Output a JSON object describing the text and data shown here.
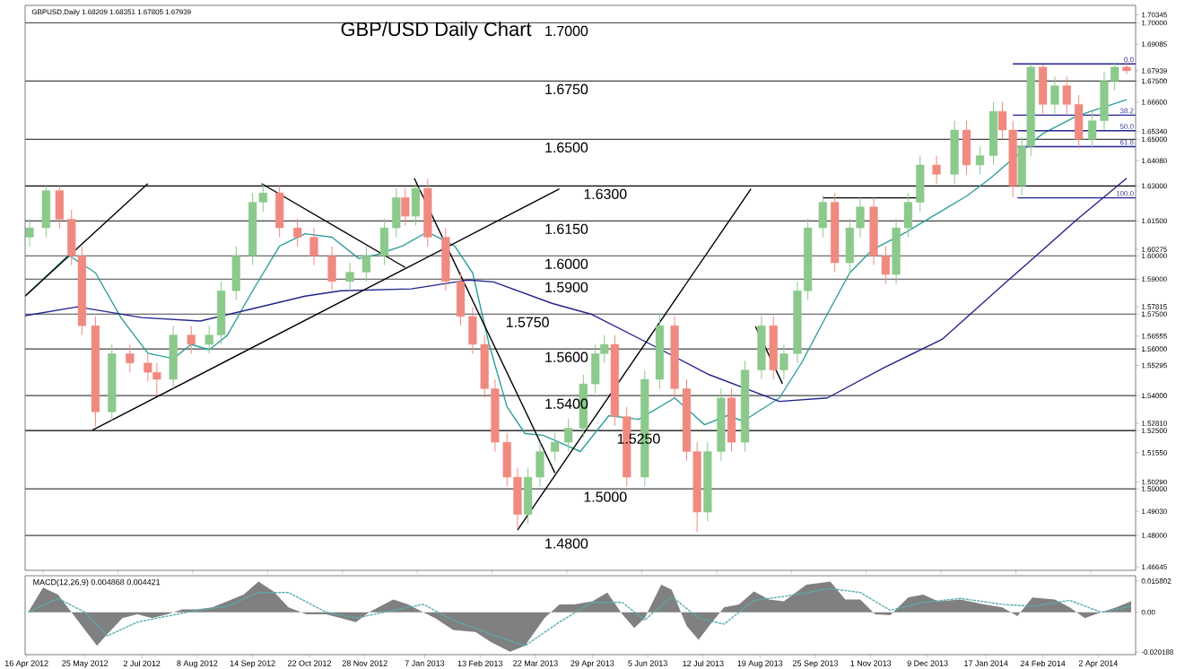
{
  "chart_data": [
    {
      "type": "candlestick",
      "title": "GBP/USD Daily Chart",
      "annotations": [
        "GBPUSD,Daily  1.68209 1.68351 1.67805 1.67939",
        {
          "text": "0.0",
          "x": "2014-04-27",
          "y": 1.6824
        },
        {
          "text": "38.2",
          "x": "2014-04-27",
          "y": 1.6604
        },
        {
          "text": "50.0",
          "x": "2014-04-27",
          "y": 1.6537
        },
        {
          "text": "61.8",
          "x": "2014-04-27",
          "y": 1.6469
        },
        {
          "text": "100.0",
          "x": "2014-04-27",
          "y": 1.6249
        }
      ],
      "x": [
        "2012-04-18",
        "2012-04-29",
        "2012-05-08",
        "2012-05-16",
        "2012-05-23",
        "2012-06-01",
        "2012-06-12",
        "2012-06-24",
        "2012-07-06",
        "2012-07-12",
        "2012-07-23",
        "2012-08-04",
        "2012-08-16",
        "2012-08-24",
        "2012-09-03",
        "2012-09-14",
        "2012-09-21",
        "2012-10-02",
        "2012-10-14",
        "2012-10-25",
        "2012-11-06",
        "2012-11-18",
        "2012-11-29",
        "2012-12-11",
        "2012-12-19",
        "2012-12-25",
        "2013-01-01",
        "2013-01-09",
        "2013-01-21",
        "2013-01-31",
        "2013-02-08",
        "2013-02-16",
        "2013-02-23",
        "2013-03-03",
        "2013-03-10",
        "2013-03-17",
        "2013-03-25",
        "2013-04-04",
        "2013-04-13",
        "2013-04-23",
        "2013-05-01",
        "2013-05-07",
        "2013-05-14",
        "2013-05-22",
        "2013-06-03",
        "2013-06-13",
        "2013-06-23",
        "2013-07-01",
        "2013-07-08",
        "2013-07-15",
        "2013-07-24",
        "2013-07-31",
        "2013-08-09",
        "2013-08-20",
        "2013-08-28",
        "2013-09-04",
        "2013-09-13",
        "2013-09-20",
        "2013-09-30",
        "2013-10-08",
        "2013-10-18",
        "2013-10-25",
        "2013-11-03",
        "2013-11-11",
        "2013-11-18",
        "2013-11-26",
        "2013-12-04",
        "2013-12-15",
        "2013-12-27",
        "2014-01-04",
        "2014-01-13",
        "2014-01-22",
        "2014-01-28",
        "2014-02-04",
        "2014-02-10",
        "2014-02-16",
        "2014-02-24",
        "2014-03-04",
        "2014-03-12",
        "2014-03-20",
        "2014-03-29",
        "2014-04-06",
        "2014-04-13",
        "2014-04-21"
      ],
      "ohlc": [
        [
          1.608,
          1.616,
          1.604,
          1.612
        ],
        [
          1.612,
          1.63,
          1.608,
          1.628
        ],
        [
          1.628,
          1.63,
          1.6117,
          1.6157
        ],
        [
          1.6157,
          1.6197,
          1.596,
          1.6
        ],
        [
          1.6,
          1.604,
          1.566,
          1.57
        ],
        [
          1.57,
          1.574,
          1.5268,
          1.533
        ],
        [
          1.533,
          1.562,
          1.529,
          1.558
        ],
        [
          1.558,
          1.562,
          1.55,
          1.554
        ],
        [
          1.554,
          1.558,
          1.546,
          1.55
        ],
        [
          1.55,
          1.554,
          1.54,
          1.547
        ],
        [
          1.547,
          1.57,
          1.543,
          1.566
        ],
        [
          1.566,
          1.57,
          1.558,
          1.562
        ],
        [
          1.562,
          1.57,
          1.558,
          1.566
        ],
        [
          1.566,
          1.589,
          1.562,
          1.585
        ],
        [
          1.585,
          1.604,
          1.581,
          1.6
        ],
        [
          1.6,
          1.627,
          1.596,
          1.623
        ],
        [
          1.623,
          1.6306,
          1.619,
          1.627
        ],
        [
          1.627,
          1.63,
          1.608,
          1.612
        ],
        [
          1.612,
          1.616,
          1.604,
          1.608
        ],
        [
          1.608,
          1.612,
          1.596,
          1.6
        ],
        [
          1.6,
          1.604,
          1.585,
          1.589
        ],
        [
          1.589,
          1.597,
          1.585,
          1.593
        ],
        [
          1.593,
          1.604,
          1.589,
          1.6
        ],
        [
          1.6,
          1.616,
          1.596,
          1.612
        ],
        [
          1.612,
          1.629,
          1.608,
          1.625
        ],
        [
          1.625,
          1.629,
          1.613,
          1.617
        ],
        [
          1.617,
          1.631,
          1.613,
          1.629
        ],
        [
          1.629,
          1.633,
          1.604,
          1.608
        ],
        [
          1.608,
          1.612,
          1.585,
          1.589
        ],
        [
          1.589,
          1.593,
          1.57,
          1.574
        ],
        [
          1.574,
          1.578,
          1.558,
          1.562
        ],
        [
          1.562,
          1.566,
          1.539,
          1.543
        ],
        [
          1.543,
          1.547,
          1.516,
          1.52
        ],
        [
          1.52,
          1.524,
          1.501,
          1.505
        ],
        [
          1.505,
          1.509,
          1.483,
          1.489
        ],
        [
          1.489,
          1.509,
          1.485,
          1.505
        ],
        [
          1.505,
          1.52,
          1.501,
          1.516
        ],
        [
          1.516,
          1.524,
          1.512,
          1.52
        ],
        [
          1.52,
          1.53,
          1.516,
          1.526
        ],
        [
          1.526,
          1.549,
          1.522,
          1.545
        ],
        [
          1.545,
          1.562,
          1.541,
          1.558
        ],
        [
          1.558,
          1.566,
          1.554,
          1.562
        ],
        [
          1.562,
          1.566,
          1.527,
          1.531
        ],
        [
          1.531,
          1.535,
          1.501,
          1.505
        ],
        [
          1.505,
          1.551,
          1.501,
          1.547
        ],
        [
          1.547,
          1.575,
          1.543,
          1.57
        ],
        [
          1.57,
          1.574,
          1.539,
          1.543
        ],
        [
          1.543,
          1.547,
          1.512,
          1.516
        ],
        [
          1.516,
          1.52,
          1.4815,
          1.49
        ],
        [
          1.49,
          1.52,
          1.486,
          1.516
        ],
        [
          1.516,
          1.543,
          1.512,
          1.539
        ],
        [
          1.539,
          1.543,
          1.516,
          1.52
        ],
        [
          1.52,
          1.555,
          1.516,
          1.551
        ],
        [
          1.551,
          1.574,
          1.547,
          1.57
        ],
        [
          1.57,
          1.574,
          1.547,
          1.551
        ],
        [
          1.551,
          1.562,
          1.547,
          1.558
        ],
        [
          1.558,
          1.589,
          1.554,
          1.585
        ],
        [
          1.585,
          1.616,
          1.581,
          1.612
        ],
        [
          1.612,
          1.626,
          1.608,
          1.623
        ],
        [
          1.623,
          1.627,
          1.593,
          1.597
        ],
        [
          1.597,
          1.616,
          1.593,
          1.612
        ],
        [
          1.612,
          1.625,
          1.608,
          1.621
        ],
        [
          1.621,
          1.625,
          1.596,
          1.6
        ],
        [
          1.6,
          1.604,
          1.588,
          1.592
        ],
        [
          1.592,
          1.616,
          1.588,
          1.612
        ],
        [
          1.612,
          1.627,
          1.608,
          1.623
        ],
        [
          1.623,
          1.643,
          1.619,
          1.639
        ],
        [
          1.639,
          1.643,
          1.631,
          1.635
        ],
        [
          1.635,
          1.658,
          1.631,
          1.654
        ],
        [
          1.654,
          1.658,
          1.635,
          1.639
        ],
        [
          1.639,
          1.647,
          1.635,
          1.643
        ],
        [
          1.643,
          1.666,
          1.639,
          1.662
        ],
        [
          1.662,
          1.666,
          1.65,
          1.654
        ],
        [
          1.654,
          1.658,
          1.6252,
          1.63
        ],
        [
          1.63,
          1.651,
          1.626,
          1.647
        ],
        [
          1.647,
          1.6823,
          1.643,
          1.681
        ],
        [
          1.681,
          1.682,
          1.661,
          1.665
        ],
        [
          1.665,
          1.677,
          1.661,
          1.673
        ],
        [
          1.673,
          1.677,
          1.661,
          1.665
        ],
        [
          1.665,
          1.669,
          1.646,
          1.65
        ],
        [
          1.65,
          1.662,
          1.646,
          1.658
        ],
        [
          1.658,
          1.679,
          1.654,
          1.675
        ],
        [
          1.675,
          1.683,
          1.671,
          1.681
        ],
        [
          1.681,
          1.6835,
          1.678,
          1.6794
        ]
      ],
      "colors": [
        "#8cc98c",
        "#8cc98c",
        "#f08a80",
        "#f08a80",
        "#f08a80",
        "#f08a80",
        "#8cc98c",
        "#f08a80",
        "#f08a80",
        "#f08a80",
        "#8cc98c",
        "#f08a80",
        "#8cc98c",
        "#8cc98c",
        "#8cc98c",
        "#8cc98c",
        "#8cc98c",
        "#f08a80",
        "#f08a80",
        "#f08a80",
        "#f08a80",
        "#8cc98c",
        "#8cc98c",
        "#8cc98c",
        "#8cc98c",
        "#f08a80",
        "#8cc98c",
        "#f08a80",
        "#f08a80",
        "#f08a80",
        "#f08a80",
        "#f08a80",
        "#f08a80",
        "#f08a80",
        "#f08a80",
        "#8cc98c",
        "#8cc98c",
        "#8cc98c",
        "#8cc98c",
        "#8cc98c",
        "#8cc98c",
        "#8cc98c",
        "#f08a80",
        "#f08a80",
        "#8cc98c",
        "#8cc98c",
        "#f08a80",
        "#f08a80",
        "#f08a80",
        "#8cc98c",
        "#8cc98c",
        "#f08a80",
        "#8cc98c",
        "#8cc98c",
        "#f08a80",
        "#8cc98c",
        "#8cc98c",
        "#8cc98c",
        "#8cc98c",
        "#f08a80",
        "#8cc98c",
        "#8cc98c",
        "#f08a80",
        "#f08a80",
        "#8cc98c",
        "#8cc98c",
        "#8cc98c",
        "#f08a80",
        "#8cc98c",
        "#f08a80",
        "#8cc98c",
        "#8cc98c",
        "#f08a80",
        "#f08a80",
        "#8cc98c",
        "#8cc98c",
        "#f08a80",
        "#8cc98c",
        "#f08a80",
        "#f08a80",
        "#8cc98c",
        "#8cc98c",
        "#8cc98c",
        "#f08a80"
      ],
      "series": [
        {
          "type": "line",
          "color": "#2e9e9a",
          "x": [
            "2012-04-15",
            "2012-05-14",
            "2012-06-01",
            "2012-06-18",
            "2012-07-06",
            "2012-07-23",
            "2012-08-04",
            "2012-08-16",
            "2012-08-28",
            "2012-09-14",
            "2012-10-02",
            "2012-10-19",
            "2012-11-06",
            "2012-11-24",
            "2012-12-05",
            "2012-12-23",
            "2013-01-09",
            "2013-01-27",
            "2013-02-08",
            "2013-02-19",
            "2013-03-03",
            "2013-03-15",
            "2013-03-27",
            "2013-04-13",
            "2013-04-21",
            "2013-05-10",
            "2013-05-30",
            "2013-06-23",
            "2013-07-13",
            "2013-07-28",
            "2013-08-08",
            "2013-09-01",
            "2013-09-16",
            "2013-10-03",
            "2013-10-18",
            "2013-11-02",
            "2013-11-25",
            "2013-12-19",
            "2014-01-04",
            "2014-01-20",
            "2014-02-04",
            "2014-02-24",
            "2014-03-19",
            "2014-04-21"
          ],
          "values": [
            1.5827,
            1.6003,
            1.5927,
            1.5735,
            1.5582,
            1.5559,
            1.562,
            1.5597,
            1.5658,
            1.585,
            1.6042,
            1.6095,
            1.608,
            1.5988,
            1.6003,
            1.6042,
            1.6103,
            1.6042,
            1.5927,
            1.562,
            1.5352,
            1.5237,
            1.523,
            1.5183,
            1.516,
            1.5314,
            1.5298,
            1.539,
            1.5275,
            1.5314,
            1.5291,
            1.539,
            1.5543,
            1.575,
            1.5927,
            1.6026,
            1.6103,
            1.6195,
            1.6256,
            1.6333,
            1.6417,
            1.6525,
            1.6601,
            1.667
          ]
        },
        {
          "type": "line",
          "color": "#24248c",
          "x": [
            "2012-04-15",
            "2012-05-20",
            "2012-07-02",
            "2012-08-10",
            "2012-09-14",
            "2012-10-19",
            "2012-11-12",
            "2012-12-29",
            "2013-02-05",
            "2013-02-22",
            "2013-04-02",
            "2013-04-28",
            "2013-06-07",
            "2013-07-16",
            "2013-09-01",
            "2013-10-03",
            "2013-11-10",
            "2013-12-19",
            "2014-01-28",
            "2014-02-20",
            "2014-03-19",
            "2014-04-21"
          ],
          "values": [
            1.5743,
            1.5781,
            1.5735,
            1.572,
            1.5773,
            1.5827,
            1.585,
            1.5858,
            1.5896,
            1.5888,
            1.5796,
            1.575,
            1.562,
            1.549,
            1.5375,
            1.539,
            1.552,
            1.5643,
            1.5873,
            1.6003,
            1.6157,
            1.6333
          ]
        },
        {
          "type": "line",
          "color": "#000000",
          "x": [
            "2012-04-15",
            "2012-07-06"
          ],
          "values": [
            1.5827,
            1.631
          ]
        },
        {
          "type": "line",
          "color": "#000000",
          "x": [
            "2012-05-30",
            "2013-04-07"
          ],
          "values": [
            1.5252,
            1.6287
          ]
        },
        {
          "type": "line",
          "color": "#000000",
          "x": [
            "2012-09-20",
            "2012-12-25"
          ],
          "values": [
            1.631,
            1.595
          ]
        },
        {
          "type": "line",
          "color": "#000000",
          "x": [
            "2012-12-31",
            "2013-04-04"
          ],
          "values": [
            1.6333,
            1.5068
          ]
        },
        {
          "type": "line",
          "color": "#000000",
          "x": [
            "2013-03-10",
            "2013-08-13"
          ],
          "values": [
            1.4823,
            1.6287
          ]
        },
        {
          "type": "line",
          "color": "#000000",
          "x": [
            "2013-08-16",
            "2013-09-03"
          ],
          "values": [
            1.5697,
            1.5451
          ]
        },
        {
          "type": "line",
          "color": "#000000",
          "x": [
            "2013-09-30",
            "2013-12-04"
          ],
          "values": [
            1.6249,
            1.6249
          ]
        },
        {
          "type": "line",
          "color": "#23238e",
          "x": [
            "2014-02-04",
            "2014-04-27"
          ],
          "values": [
            1.6824,
            1.6824
          ]
        },
        {
          "type": "line",
          "color": "#23238e",
          "x": [
            "2014-02-04",
            "2014-04-27"
          ],
          "values": [
            1.6604,
            1.6604
          ]
        },
        {
          "type": "line",
          "color": "#23238e",
          "x": [
            "2014-02-07",
            "2014-04-27"
          ],
          "values": [
            1.6537,
            1.6537
          ]
        },
        {
          "type": "line",
          "color": "#23238e",
          "x": [
            "2014-02-07",
            "2014-04-27"
          ],
          "values": [
            1.6469,
            1.6469
          ]
        },
        {
          "type": "line",
          "color": "#23238e",
          "x": [
            "2014-02-07",
            "2014-04-27"
          ],
          "values": [
            1.6249,
            1.6249
          ]
        }
      ],
      "ref_lines": [
        {
          "axis": "y",
          "value": 1.7,
          "label": "1.7000",
          "color": "#444444"
        },
        {
          "axis": "y",
          "value": 1.675,
          "label": "1.6750",
          "color": "#444444"
        },
        {
          "axis": "y",
          "value": 1.65,
          "label": "1.6500",
          "color": "#444444"
        },
        {
          "axis": "y",
          "value": 1.63,
          "label": "1.6300",
          "color": "#000000"
        },
        {
          "axis": "y",
          "value": 1.615,
          "label": "1.6150",
          "color": "#444444"
        },
        {
          "axis": "y",
          "value": 1.6,
          "label": "1.6000",
          "color": "#444444"
        },
        {
          "axis": "y",
          "value": 1.59,
          "label": "1.5900",
          "color": "#444444"
        },
        {
          "axis": "y",
          "value": 1.575,
          "label": "1.5750",
          "color": "#444444"
        },
        {
          "axis": "y",
          "value": 1.56,
          "label": "1.5600",
          "color": "#444444"
        },
        {
          "axis": "y",
          "value": 1.54,
          "label": "1.5400",
          "color": "#444444"
        },
        {
          "axis": "y",
          "value": 1.525,
          "label": "1.5250",
          "color": "#000000"
        },
        {
          "axis": "y",
          "value": 1.5,
          "label": "1.5000",
          "color": "#444444"
        },
        {
          "axis": "y",
          "value": 1.48,
          "label": "1.4800",
          "color": "#444444"
        }
      ],
      "xlim": [
        "2012-04-15",
        "2014-04-27"
      ],
      "ylim": [
        1.465,
        1.7075
      ],
      "yticks": [
        {
          "value": 1.70345,
          "label": "1.70345"
        },
        {
          "value": 1.7,
          "label": "1.70000"
        },
        {
          "value": 1.69085,
          "label": "1.69085"
        },
        {
          "value": 1.67939,
          "label": "1.67939"
        },
        {
          "value": 1.675,
          "label": "1.67500"
        },
        {
          "value": 1.666,
          "label": "1.66600"
        },
        {
          "value": 1.6534,
          "label": "1.65340"
        },
        {
          "value": 1.65,
          "label": "1.65000"
        },
        {
          "value": 1.6408,
          "label": "1.64080"
        },
        {
          "value": 1.63,
          "label": "1.63000"
        },
        {
          "value": 1.615,
          "label": "1.61500"
        },
        {
          "value": 1.60275,
          "label": "1.60275"
        },
        {
          "value": 1.6,
          "label": "1.60000"
        },
        {
          "value": 1.59,
          "label": "1.59000"
        },
        {
          "value": 1.57815,
          "label": "1.57815"
        },
        {
          "value": 1.575,
          "label": "1.57500"
        },
        {
          "value": 1.56555,
          "label": "1.56555"
        },
        {
          "value": 1.56,
          "label": "1.56000"
        },
        {
          "value": 1.55295,
          "label": "1.55295"
        },
        {
          "value": 1.54,
          "label": "1.54000"
        },
        {
          "value": 1.5281,
          "label": "1.52810"
        },
        {
          "value": 1.525,
          "label": "1.52500"
        },
        {
          "value": 1.5155,
          "label": "1.51550"
        },
        {
          "value": 1.5029,
          "label": "1.50290"
        },
        {
          "value": 1.5,
          "label": "1.50000"
        },
        {
          "value": 1.4903,
          "label": "1.49030"
        },
        {
          "value": 1.48,
          "label": "1.48000"
        },
        {
          "value": 1.46645,
          "label": "1.46645"
        }
      ],
      "tick_labels": "y"
    },
    {
      "type": "area",
      "title": "MACD(12,26,9) 0.004868 0.004421",
      "x": [
        "2012-04-17",
        "2012-04-27",
        "2012-05-07",
        "2012-05-17",
        "2012-05-25",
        "2012-06-02",
        "2012-06-09",
        "2012-06-19",
        "2012-06-29",
        "2012-07-09",
        "2012-07-19",
        "2012-07-29",
        "2012-08-08",
        "2012-08-18",
        "2012-08-28",
        "2012-09-08",
        "2012-09-18",
        "2012-09-28",
        "2012-10-08",
        "2012-10-20",
        "2012-11-02",
        "2012-11-12",
        "2012-11-22",
        "2012-12-02",
        "2012-12-17",
        "2012-12-27",
        "2013-01-06",
        "2013-01-14",
        "2013-01-26",
        "2013-02-10",
        "2013-02-20",
        "2013-03-05",
        "2013-03-15",
        "2013-03-28",
        "2013-04-07",
        "2013-04-17",
        "2013-04-29",
        "2013-05-09",
        "2013-05-19",
        "2013-05-27",
        "2013-06-03",
        "2013-06-14",
        "2013-06-21",
        "2013-07-01",
        "2013-07-09",
        "2013-07-16",
        "2013-07-26",
        "2013-08-05",
        "2013-08-15",
        "2013-08-25",
        "2013-09-04",
        "2013-09-19",
        "2013-10-05",
        "2013-10-15",
        "2013-10-25",
        "2013-11-04",
        "2013-11-14",
        "2013-11-26",
        "2013-12-06",
        "2013-12-16",
        "2013-12-31",
        "2014-01-16",
        "2014-01-28",
        "2014-02-07",
        "2014-02-17",
        "2014-03-04",
        "2014-03-14",
        "2014-03-24",
        "2014-04-04",
        "2014-04-14",
        "2014-04-24"
      ],
      "series": [
        {
          "color": "#808080",
          "values": [
            0,
            0.0125,
            0.009,
            -0.001,
            -0.009,
            -0.017,
            -0.011,
            -0.003,
            -0.001,
            -0.003,
            -0.001,
            0.0015,
            0.0015,
            0.0025,
            0.0055,
            0.009,
            0.0155,
            0.0105,
            0.0025,
            -0.001,
            -0.001,
            -0.003,
            -0.005,
            0.0005,
            0.0065,
            0.004,
            0,
            -0.003,
            -0.009,
            -0.01,
            -0.015,
            -0.02,
            -0.017,
            -0.003,
            0.004,
            0.004,
            0.0055,
            0.01,
            -0.001,
            -0.008,
            -0.003,
            0.014,
            0.0115,
            -0.007,
            -0.014,
            -0.007,
            0.0025,
            0.004,
            0.0105,
            0.0065,
            0.0055,
            0.014,
            0.0155,
            0.0065,
            0.0065,
            -0.001,
            -0.0015,
            0.0075,
            0.009,
            0.0055,
            0.0065,
            0.004,
            0.0025,
            -0.002,
            0.0075,
            0.0065,
            0.0025,
            -0.003,
            0,
            0.0025,
            0.0055
          ]
        },
        {
          "type": "line",
          "color": "#5aaeb0",
          "line_style": "dashed",
          "x": [
            "2012-04-17",
            "2012-05-07",
            "2012-05-25",
            "2012-06-09",
            "2012-06-29",
            "2012-07-19",
            "2012-08-08",
            "2012-08-28",
            "2012-09-18",
            "2012-10-08",
            "2012-11-02",
            "2012-11-22",
            "2012-12-17",
            "2013-01-06",
            "2013-01-26",
            "2013-02-20",
            "2013-03-15",
            "2013-04-07",
            "2013-04-29",
            "2013-05-19",
            "2013-06-03",
            "2013-06-21",
            "2013-07-09",
            "2013-07-26",
            "2013-08-15",
            "2013-09-04",
            "2013-10-05",
            "2013-10-25",
            "2013-11-14",
            "2013-12-06",
            "2013-12-31",
            "2014-01-28",
            "2014-02-17",
            "2014-03-14",
            "2014-04-04",
            "2014-04-24"
          ],
          "values": [
            0,
            0.007,
            0,
            -0.012,
            -0.005,
            -0.002,
            0.001,
            0.003,
            0.01,
            0.01,
            0,
            -0.003,
            0.001,
            0.004,
            -0.004,
            -0.011,
            -0.017,
            -0.005,
            0.005,
            0.005,
            -0.004,
            0.008,
            -0.003,
            -0.006,
            0.006,
            0.008,
            0.012,
            0.01,
            0.001,
            0.005,
            0.007,
            0.004,
            0.003,
            0.006,
            0,
            0.003
          ]
        }
      ],
      "xlim": [
        "2012-04-15",
        "2014-04-27"
      ],
      "ylim": [
        -0.0215,
        0.0185
      ],
      "yticks": [
        {
          "value": 0.015802,
          "label": "0.015802"
        },
        {
          "value": 0,
          "label": "0.00"
        },
        {
          "value": -0.020188,
          "label": "-0.020188"
        }
      ],
      "xticks": [
        {
          "value": "2012-04-16",
          "label": "16 Apr 2012"
        },
        {
          "value": "2012-05-25",
          "label": "25 May 2012"
        },
        {
          "value": "2012-07-02",
          "label": "2 Jul 2012"
        },
        {
          "value": "2012-08-08",
          "label": "8 Aug 2012"
        },
        {
          "value": "2012-09-14",
          "label": "14 Sep 2012"
        },
        {
          "value": "2012-10-22",
          "label": "22 Oct 2012"
        },
        {
          "value": "2012-11-28",
          "label": "28 Nov 2012"
        },
        {
          "value": "2013-01-07",
          "label": "7 Jan 2013"
        },
        {
          "value": "2013-02-13",
          "label": "13 Feb 2013"
        },
        {
          "value": "2013-03-22",
          "label": "22 Mar 2013"
        },
        {
          "value": "2013-04-29",
          "label": "29 Apr 2013"
        },
        {
          "value": "2013-06-05",
          "label": "5 Jun 2013"
        },
        {
          "value": "2013-07-12",
          "label": "12 Jul 2013"
        },
        {
          "value": "2013-08-19",
          "label": "19 Aug 2013"
        },
        {
          "value": "2013-09-25",
          "label": "25 Sep 2013"
        },
        {
          "value": "2013-11-01",
          "label": "1 Nov 2013"
        },
        {
          "value": "2013-12-09",
          "label": "9 Dec 2013"
        },
        {
          "value": "2014-01-17",
          "label": "17 Jan 2014"
        },
        {
          "value": "2014-02-24",
          "label": "24 Feb 2014"
        },
        {
          "value": "2014-04-02",
          "label": "2 Apr 2014"
        }
      ]
    }
  ]
}
